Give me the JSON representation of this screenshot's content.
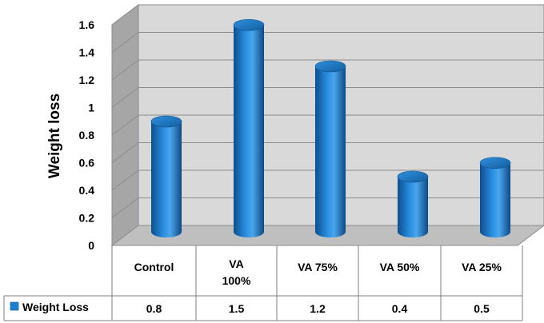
{
  "chart_data": {
    "type": "bar",
    "title": "",
    "xlabel": "",
    "ylabel": "Weight loss",
    "ylim": [
      0,
      1.6
    ],
    "ytick_step": 0.2,
    "yticks": [
      "0",
      "0.2",
      "0.4",
      "0.6",
      "0.8",
      "1",
      "1.2",
      "1.4",
      "1.6"
    ],
    "categories": [
      "Control",
      "VA 100%",
      "VA 75%",
      "VA 50%",
      "VA 25%"
    ],
    "category_lines": [
      [
        "Control"
      ],
      [
        "VA",
        "100%"
      ],
      [
        "VA 75%"
      ],
      [
        "VA 50%"
      ],
      [
        "VA 25%"
      ]
    ],
    "series": [
      {
        "name": "Weight Loss",
        "values": [
          0.8,
          1.5,
          1.2,
          0.4,
          0.5
        ],
        "value_labels": [
          "0.8",
          "1.5",
          "1.2",
          "0.4",
          "0.5"
        ],
        "color": "#1f7fd0"
      }
    ],
    "grid": true,
    "legend": "data-table-left",
    "style": "3d-cylinder"
  }
}
